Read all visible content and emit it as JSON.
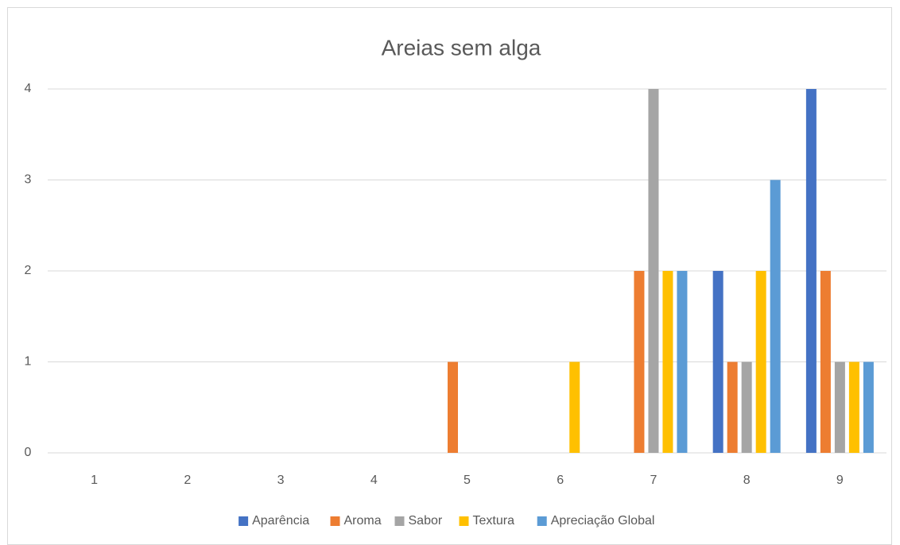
{
  "chart_data": {
    "type": "bar",
    "title": "Areias sem alga",
    "categories": [
      "1",
      "2",
      "3",
      "4",
      "5",
      "6",
      "7",
      "8",
      "9"
    ],
    "series": [
      {
        "name": "Aparência",
        "color": "#4472c4",
        "values": [
          0,
          0,
          0,
          0,
          0,
          0,
          0,
          2,
          4
        ]
      },
      {
        "name": "Aroma",
        "color": "#ed7d31",
        "values": [
          0,
          0,
          0,
          0,
          1,
          0,
          2,
          1,
          2
        ]
      },
      {
        "name": "Sabor",
        "color": "#a5a5a5",
        "values": [
          0,
          0,
          0,
          0,
          0,
          0,
          4,
          1,
          1
        ]
      },
      {
        "name": "Textura",
        "color": "#ffc000",
        "values": [
          0,
          0,
          0,
          0,
          0,
          1,
          2,
          2,
          1
        ]
      },
      {
        "name": "Apreciação Global",
        "color": "#5b9bd5",
        "values": [
          0,
          0,
          0,
          0,
          0,
          0,
          2,
          3,
          1
        ]
      }
    ],
    "ylim": [
      0,
      4
    ],
    "yticks": [
      0,
      1,
      2,
      3,
      4
    ],
    "grid": true,
    "legend": "bottom"
  }
}
